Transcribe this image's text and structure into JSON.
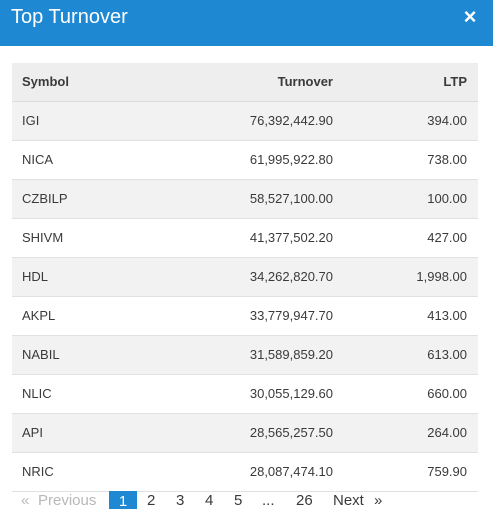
{
  "modal": {
    "title": "Top Turnover",
    "close_icon": "×"
  },
  "table": {
    "columns": {
      "symbol": "Symbol",
      "turnover": "Turnover",
      "ltp": "LTP"
    },
    "rows": [
      {
        "symbol": "IGI",
        "turnover": "76,392,442.90",
        "ltp": "394.00"
      },
      {
        "symbol": "NICA",
        "turnover": "61,995,922.80",
        "ltp": "738.00"
      },
      {
        "symbol": "CZBILP",
        "turnover": "58,527,100.00",
        "ltp": "100.00"
      },
      {
        "symbol": "SHIVM",
        "turnover": "41,377,502.20",
        "ltp": "427.00"
      },
      {
        "symbol": "HDL",
        "turnover": "34,262,820.70",
        "ltp": "1,998.00"
      },
      {
        "symbol": "AKPL",
        "turnover": "33,779,947.70",
        "ltp": "413.00"
      },
      {
        "symbol": "NABIL",
        "turnover": "31,589,859.20",
        "ltp": "613.00"
      },
      {
        "symbol": "NLIC",
        "turnover": "30,055,129.60",
        "ltp": "660.00"
      },
      {
        "symbol": "API",
        "turnover": "28,565,257.50",
        "ltp": "264.00"
      },
      {
        "symbol": "NRIC",
        "turnover": "28,087,474.10",
        "ltp": "759.90"
      }
    ]
  },
  "pagination": {
    "first": "«",
    "previous": "Previous",
    "pages": [
      "1",
      "2",
      "3",
      "4",
      "5"
    ],
    "ellipsis": "...",
    "last_page": "26",
    "next": "Next",
    "next_arrow": "»",
    "current_page": 1
  },
  "colors": {
    "accent": "#1e88d3"
  }
}
